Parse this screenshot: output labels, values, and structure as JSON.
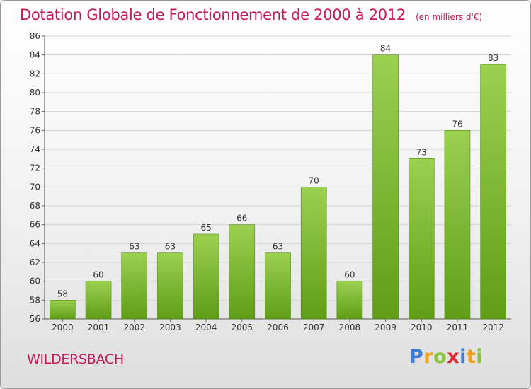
{
  "header": {
    "title": "Dotation Globale de Fonctionnement de 2000 à 2012",
    "unit": "(en milliers d'€)"
  },
  "footer": {
    "place": "WILDERSBACH",
    "logo_letters": [
      "P",
      "r",
      "o",
      "x",
      "i",
      "t",
      "i"
    ],
    "logo_colors": [
      "#3a7fd5",
      "#f0a018",
      "#8ac43f",
      "#e0232a",
      "#3a7fd5",
      "#f0a018",
      "#8ac43f"
    ]
  },
  "colors": {
    "title": "#c8195a",
    "bar_top": "#9cd050",
    "bar_bottom": "#5f9e16",
    "bar_edge": "#4f8a10"
  },
  "chart_data": {
    "type": "bar",
    "title": "Dotation Globale de Fonctionnement de 2000 à 2012",
    "subtitle": "(en milliers d'€)",
    "xlabel": "",
    "ylabel": "",
    "categories": [
      "2000",
      "2001",
      "2002",
      "2003",
      "2004",
      "2005",
      "2006",
      "2007",
      "2008",
      "2009",
      "2010",
      "2011",
      "2012"
    ],
    "values": [
      58,
      60,
      63,
      63,
      65,
      66,
      63,
      70,
      60,
      84,
      73,
      76,
      83
    ],
    "ylim": [
      56,
      86
    ],
    "yticks": [
      56,
      58,
      60,
      62,
      64,
      66,
      68,
      70,
      72,
      74,
      76,
      78,
      80,
      82,
      84,
      86
    ],
    "grid": true
  }
}
